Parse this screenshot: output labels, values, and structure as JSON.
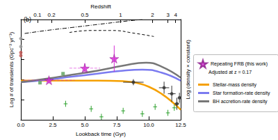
{
  "chart_data": {
    "type": "scatter",
    "panel_label": "(b)",
    "x_label": "Lookback time (Gyr)",
    "y_label": "Log # of transients (Gpc⁻³ yr⁻¹)",
    "y2_label": "Log (density × constant)",
    "top_axis": {
      "label": "Redshift",
      "ticks": [
        {
          "value": 1.3,
          "label": "0.1"
        },
        {
          "value": 2.4,
          "label": "0.2"
        },
        {
          "value": 5.0,
          "label": "0.5"
        },
        {
          "value": 7.8,
          "label": "1"
        },
        {
          "value": 10.3,
          "label": "2"
        },
        {
          "value": 11.5,
          "label": "3"
        },
        {
          "value": 12.1,
          "label": "4"
        }
      ]
    },
    "xlim": [
      0,
      12.5
    ],
    "xticks": [
      {
        "value": 0,
        "label": "0.0"
      },
      2.5,
      {
        "value": 5,
        "label": "5.0"
      },
      7.5,
      {
        "value": 10,
        "label": "10.0"
      },
      12.5
    ],
    "ylim": [
      0,
      10
    ],
    "yticks": [
      0,
      2,
      4,
      6,
      8,
      10
    ],
    "y2lim": [
      0,
      10
    ],
    "tick_labels": "x",
    "legend_note": "Adjusted at z = 0.17",
    "series": [
      {
        "type": "line",
        "color": "#000000",
        "line_style": "dashdot",
        "x": [
          0.3,
          2,
          4,
          6,
          8,
          9.5
        ],
        "values": [
          8.6,
          8.9,
          9.2,
          9.5,
          9.8,
          10.0
        ]
      },
      {
        "type": "line",
        "color": "#000000",
        "line_style": "dashed",
        "x": [
          3.8,
          5.5,
          7.1,
          9,
          10.4
        ],
        "values": [
          8.7,
          8.9,
          8.9,
          8.6,
          8.3
        ]
      },
      {
        "type": "scatter",
        "color": "#999999",
        "marker": "circle",
        "x": [
          0,
          0
        ],
        "values": [
          8.1,
          7.3
        ]
      },
      {
        "type": "scatter",
        "color": "#c0504d",
        "marker": "circle",
        "x": [
          0,
          0
        ],
        "values": [
          6.7,
          6.4
        ]
      },
      {
        "type": "scatter",
        "color": "#2ca02c",
        "marker": "none",
        "x": [
          3.5,
          5.5,
          6.3,
          8.0,
          9.5,
          10.5,
          11.5,
          12.0
        ],
        "values": [
          1.6,
          1.1,
          0.3,
          0.9,
          0.6,
          1.3,
          0.7,
          1.2
        ],
        "xerr": [
          0.15,
          0.15,
          0.15,
          0.15,
          0.15,
          0.15,
          0.15,
          0.15
        ],
        "yerr": [
          0.3,
          0.3,
          0.3,
          0.3,
          0.3,
          0.3,
          0.3,
          0.3
        ]
      },
      {
        "type": "scatter",
        "color": "#5aa05a",
        "marker": "square",
        "x": [
          1.5,
          3.3
        ],
        "values": [
          3.7,
          4.6
        ]
      },
      {
        "type": "scatter",
        "color": "#333333",
        "marker": "circle",
        "x": [
          8.8,
          11.2,
          11.8,
          12.2,
          12.4
        ],
        "values": [
          3.75,
          3.2,
          2.6,
          1.6,
          2.2
        ],
        "xerr": [
          0.8,
          0.4,
          0.3,
          0.2,
          0.1
        ],
        "yerr": [
          0.3,
          0.6,
          0.8,
          0.6,
          0.5
        ]
      },
      {
        "name": "Stellar-mass density",
        "type": "line",
        "axis": "y2",
        "color": "#f5a000",
        "line_style": "solid",
        "x": [
          0,
          2,
          4,
          6,
          8,
          9,
          10,
          11,
          12,
          12.5
        ],
        "values": [
          3.9,
          3.9,
          3.9,
          3.9,
          3.85,
          3.7,
          3.3,
          2.6,
          1.6,
          1.0
        ]
      },
      {
        "name": "Star formation-rate density",
        "type": "line",
        "axis": "y2",
        "color": "#7b7bf0",
        "line_style": "solid",
        "x": [
          0,
          2,
          4,
          6,
          8,
          9.5,
          11,
          12.5
        ],
        "values": [
          3.75,
          4.0,
          4.3,
          4.6,
          4.9,
          5.0,
          4.7,
          3.9
        ]
      },
      {
        "name": "BH accretion-rate density",
        "type": "line",
        "axis": "y2",
        "color": "#777777",
        "line_style": "solid",
        "x": [
          0,
          2,
          4,
          6,
          8,
          9.8,
          11,
          12.5
        ],
        "values": [
          3.75,
          4.1,
          4.5,
          4.9,
          5.4,
          5.7,
          5.3,
          4.2
        ]
      },
      {
        "name": "Repeating FRB (this work)",
        "type": "scatter",
        "color": "#d62ad6",
        "marker": "star",
        "x": [
          2.2,
          5.0,
          7.3
        ],
        "values": [
          3.95,
          5.15,
          6.1
        ],
        "xerr": [
          2.0,
          1.2,
          0.3
        ],
        "yerr": [
          0.3,
          0.5,
          1.3
        ]
      }
    ]
  }
}
